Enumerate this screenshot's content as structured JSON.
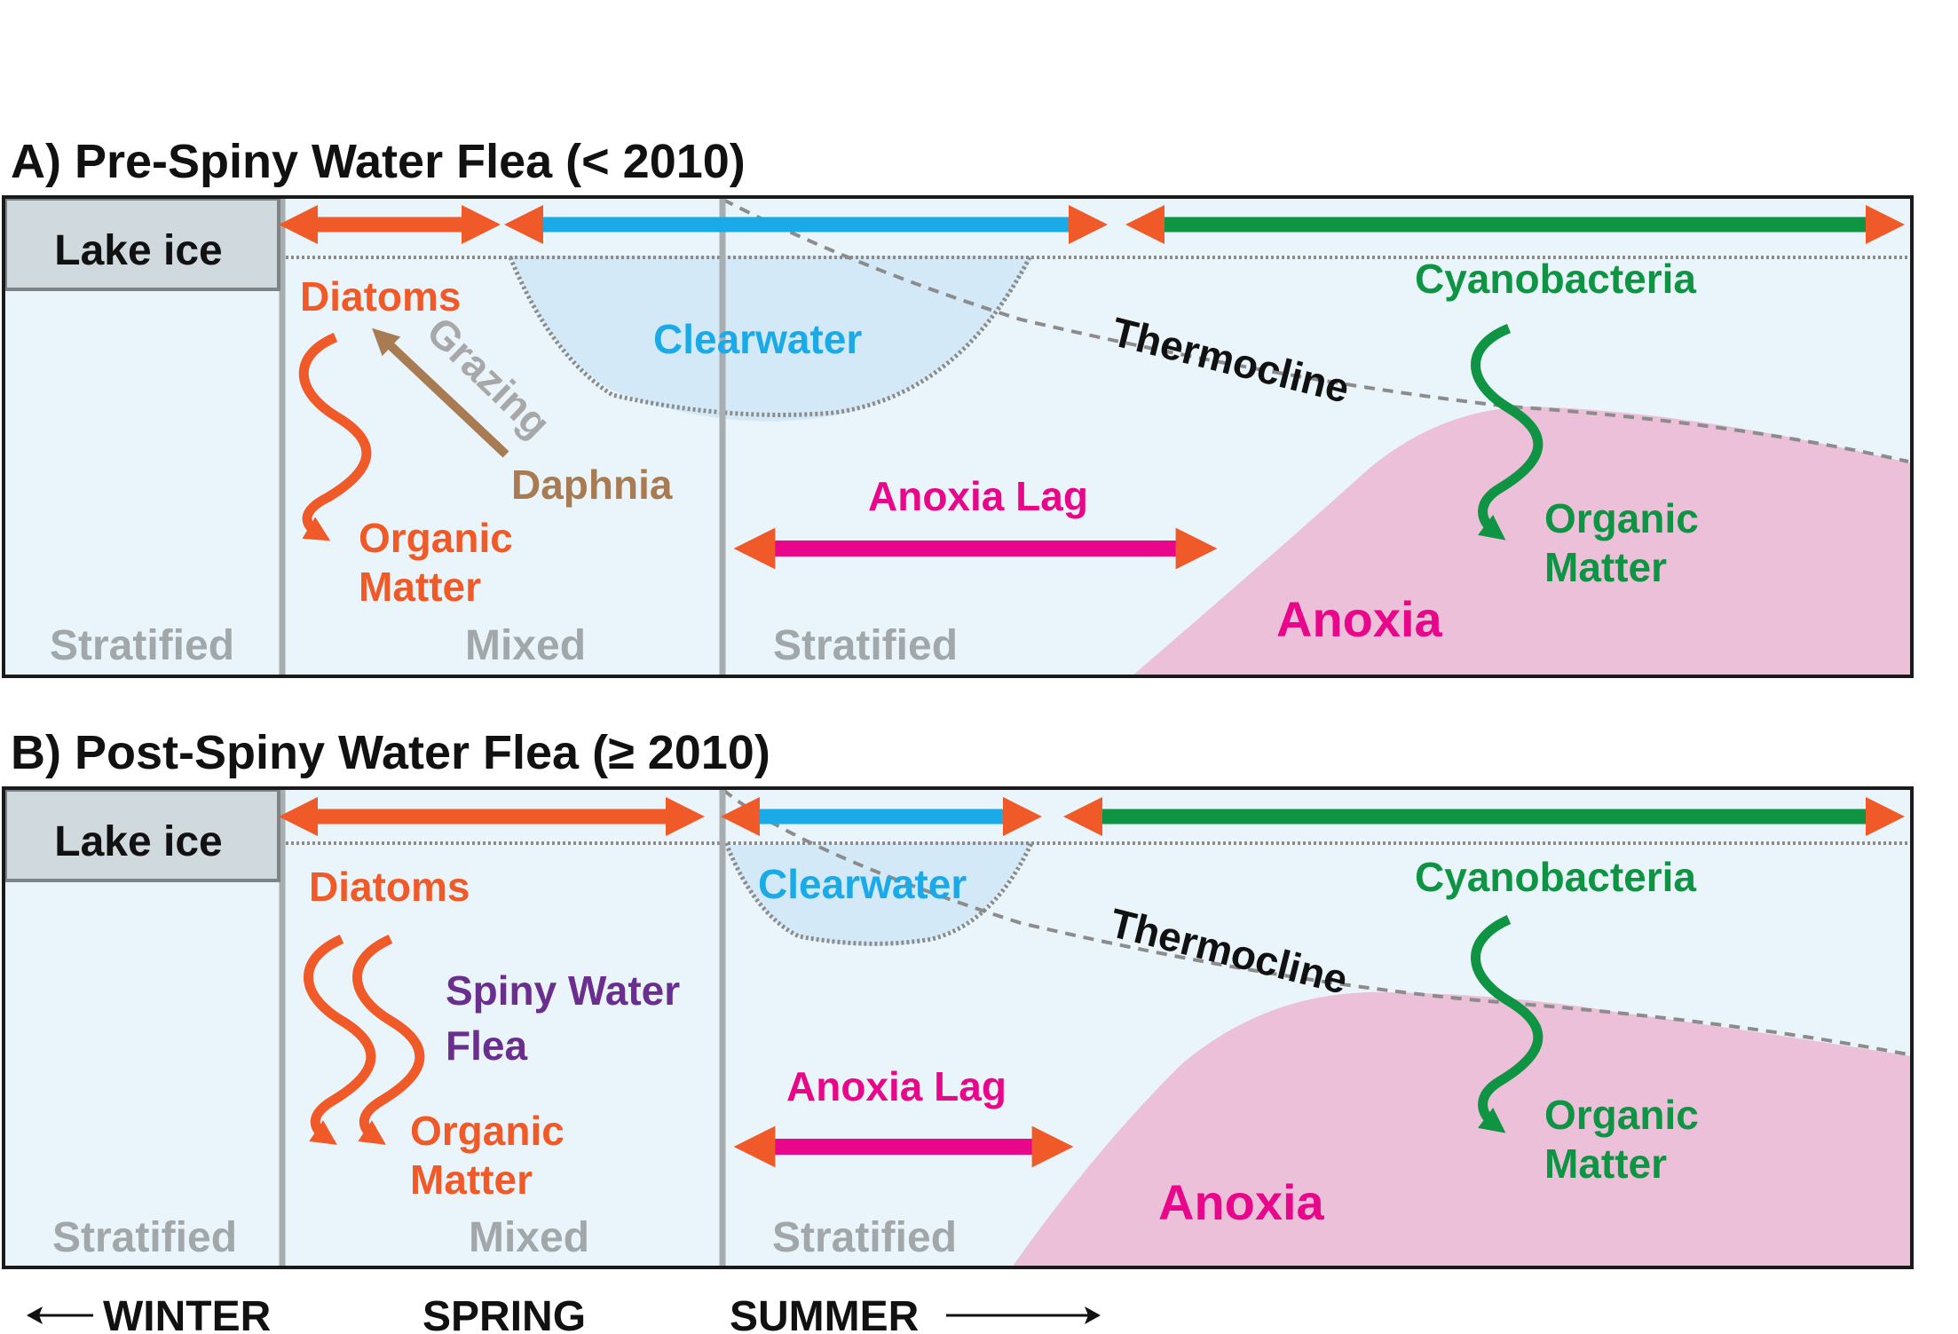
{
  "colors": {
    "water": "#e9f5fb",
    "clearwater": "#d4e9f7",
    "anoxia": "#ecc0d9",
    "diatoms": "#f05a28",
    "clearwater_text": "#1aaae8",
    "cyanobacteria": "#0f9444",
    "anoxia_text": "#e8068a",
    "daphnia": "#a97b52",
    "spiny": "#6a2e8e",
    "grazing": "#a8a8a8",
    "ice": "#cfd9de",
    "divider": "#a8adb0"
  },
  "panel_a": {
    "title": "A) Pre-Spiny Water Flea (< 2010)",
    "lake_ice": "Lake ice",
    "diatoms": "Diatoms",
    "grazing": "Grazing",
    "daphnia": "Daphnia",
    "organic_matter_1": "Organic",
    "organic_matter_2": "Matter",
    "clearwater": "Clearwater",
    "thermocline": "Thermocline",
    "cyanobacteria": "Cyanobacteria",
    "cyano_om_1": "Organic",
    "cyano_om_2": "Matter",
    "anoxia_lag": "Anoxia Lag",
    "anoxia": "Anoxia",
    "stratified_winter": "Stratified",
    "mixed": "Mixed",
    "stratified_summer": "Stratified"
  },
  "panel_b": {
    "title": "B) Post-Spiny Water Flea (≥ 2010)",
    "lake_ice": "Lake ice",
    "diatoms": "Diatoms",
    "spiny_1": "Spiny Water",
    "spiny_2": "Flea",
    "organic_matter_1": "Organic",
    "organic_matter_2": "Matter",
    "clearwater": "Clearwater",
    "thermocline": "Thermocline",
    "cyanobacteria": "Cyanobacteria",
    "cyano_om_1": "Organic",
    "cyano_om_2": "Matter",
    "anoxia_lag": "Anoxia Lag",
    "anoxia": "Anoxia",
    "stratified_winter": "Stratified",
    "mixed": "Mixed",
    "stratified_summer": "Stratified"
  },
  "seasons": {
    "winter": "WINTER",
    "spring": "SPRING",
    "summer": "SUMMER"
  }
}
